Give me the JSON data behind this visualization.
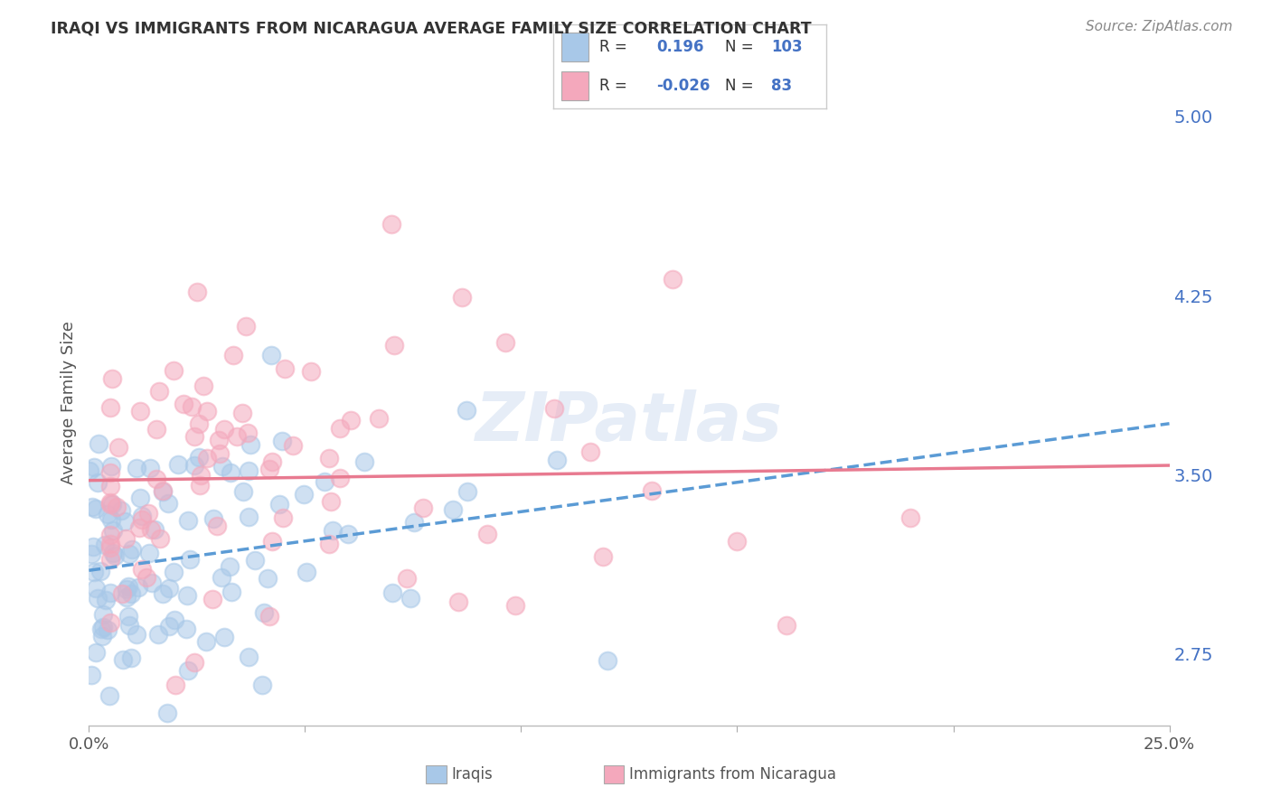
{
  "title": "IRAQI VS IMMIGRANTS FROM NICARAGUA AVERAGE FAMILY SIZE CORRELATION CHART",
  "source": "Source: ZipAtlas.com",
  "ylabel": "Average Family Size",
  "xmin": 0.0,
  "xmax": 0.25,
  "ymin": 2.45,
  "ymax": 5.15,
  "yticks": [
    2.75,
    3.5,
    4.25,
    5.0
  ],
  "iraqis_color": "#A8C8E8",
  "nicaragua_color": "#F4A8BC",
  "iraqis_line_color": "#5B9BD5",
  "nicaragua_line_color": "#E87A90",
  "iraqis_R": 0.196,
  "iraqis_N": 103,
  "nicaragua_R": -0.026,
  "nicaragua_N": 83,
  "iraqis_label": "Iraqis",
  "nicaragua_label": "Immigrants from Nicaragua",
  "watermark": "ZIPatlas",
  "background_color": "#FFFFFF",
  "grid_color": "#CCCCCC",
  "title_color": "#333333",
  "axis_label_color": "#4472C4",
  "text_color": "#555555"
}
